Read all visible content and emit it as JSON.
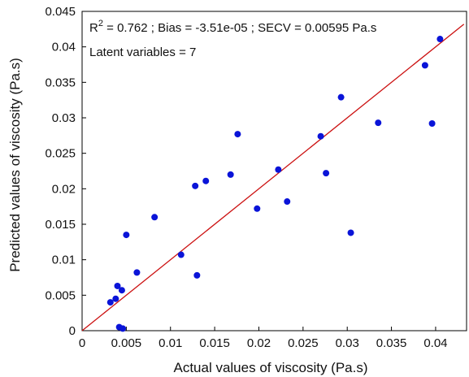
{
  "chart_data": {
    "type": "scatter",
    "xlabel": "Actual values of viscosity (Pa.s)",
    "ylabel": "Predicted values of viscosity (Pa.s)",
    "xlim": [
      0,
      0.0435
    ],
    "ylim": [
      0,
      0.045
    ],
    "x_ticks": [
      "0",
      "0.005",
      "0.01",
      "0.015",
      "0.02",
      "0.025",
      "0.03",
      "0.035",
      "0.04"
    ],
    "x_tick_values": [
      0,
      0.005,
      0.01,
      0.015,
      0.02,
      0.025,
      0.03,
      0.035,
      0.04
    ],
    "y_ticks": [
      "0",
      "0.005",
      "0.01",
      "0.015",
      "0.02",
      "0.025",
      "0.03",
      "0.035",
      "0.04",
      "0.045"
    ],
    "y_tick_values": [
      0,
      0.005,
      0.01,
      0.015,
      0.02,
      0.025,
      0.03,
      0.035,
      0.04,
      0.045
    ],
    "annotation": {
      "r2_prefix": "R",
      "r2_sup": "2",
      "stats_text": " = 0.762 ; Bias = -3.51e-05  ; SECV = 0.00595 Pa.s",
      "latent_text": "Latent variables = 7"
    },
    "points": [
      [
        0.0032,
        0.004
      ],
      [
        0.0038,
        0.0045
      ],
      [
        0.004,
        0.0063
      ],
      [
        0.0045,
        0.0057
      ],
      [
        0.0042,
        0.0005
      ],
      [
        0.0046,
        0.0003
      ],
      [
        0.005,
        0.0135
      ],
      [
        0.0062,
        0.0082
      ],
      [
        0.0082,
        0.016
      ],
      [
        0.0112,
        0.0107
      ],
      [
        0.0128,
        0.0204
      ],
      [
        0.013,
        0.0078
      ],
      [
        0.014,
        0.0211
      ],
      [
        0.0168,
        0.022
      ],
      [
        0.0176,
        0.0277
      ],
      [
        0.0198,
        0.0172
      ],
      [
        0.0222,
        0.0227
      ],
      [
        0.0232,
        0.0182
      ],
      [
        0.027,
        0.0274
      ],
      [
        0.0276,
        0.0222
      ],
      [
        0.0293,
        0.0329
      ],
      [
        0.0304,
        0.0138
      ],
      [
        0.0335,
        0.0293
      ],
      [
        0.0388,
        0.0374
      ],
      [
        0.0396,
        0.0292
      ],
      [
        0.0405,
        0.0411
      ]
    ],
    "fit_line": {
      "x": [
        0,
        0.0432
      ],
      "y": [
        0,
        0.0432
      ]
    },
    "colors": {
      "points": "#0a14d8",
      "fit_line": "#cc1111",
      "axis": "#000000"
    },
    "grid": false
  }
}
